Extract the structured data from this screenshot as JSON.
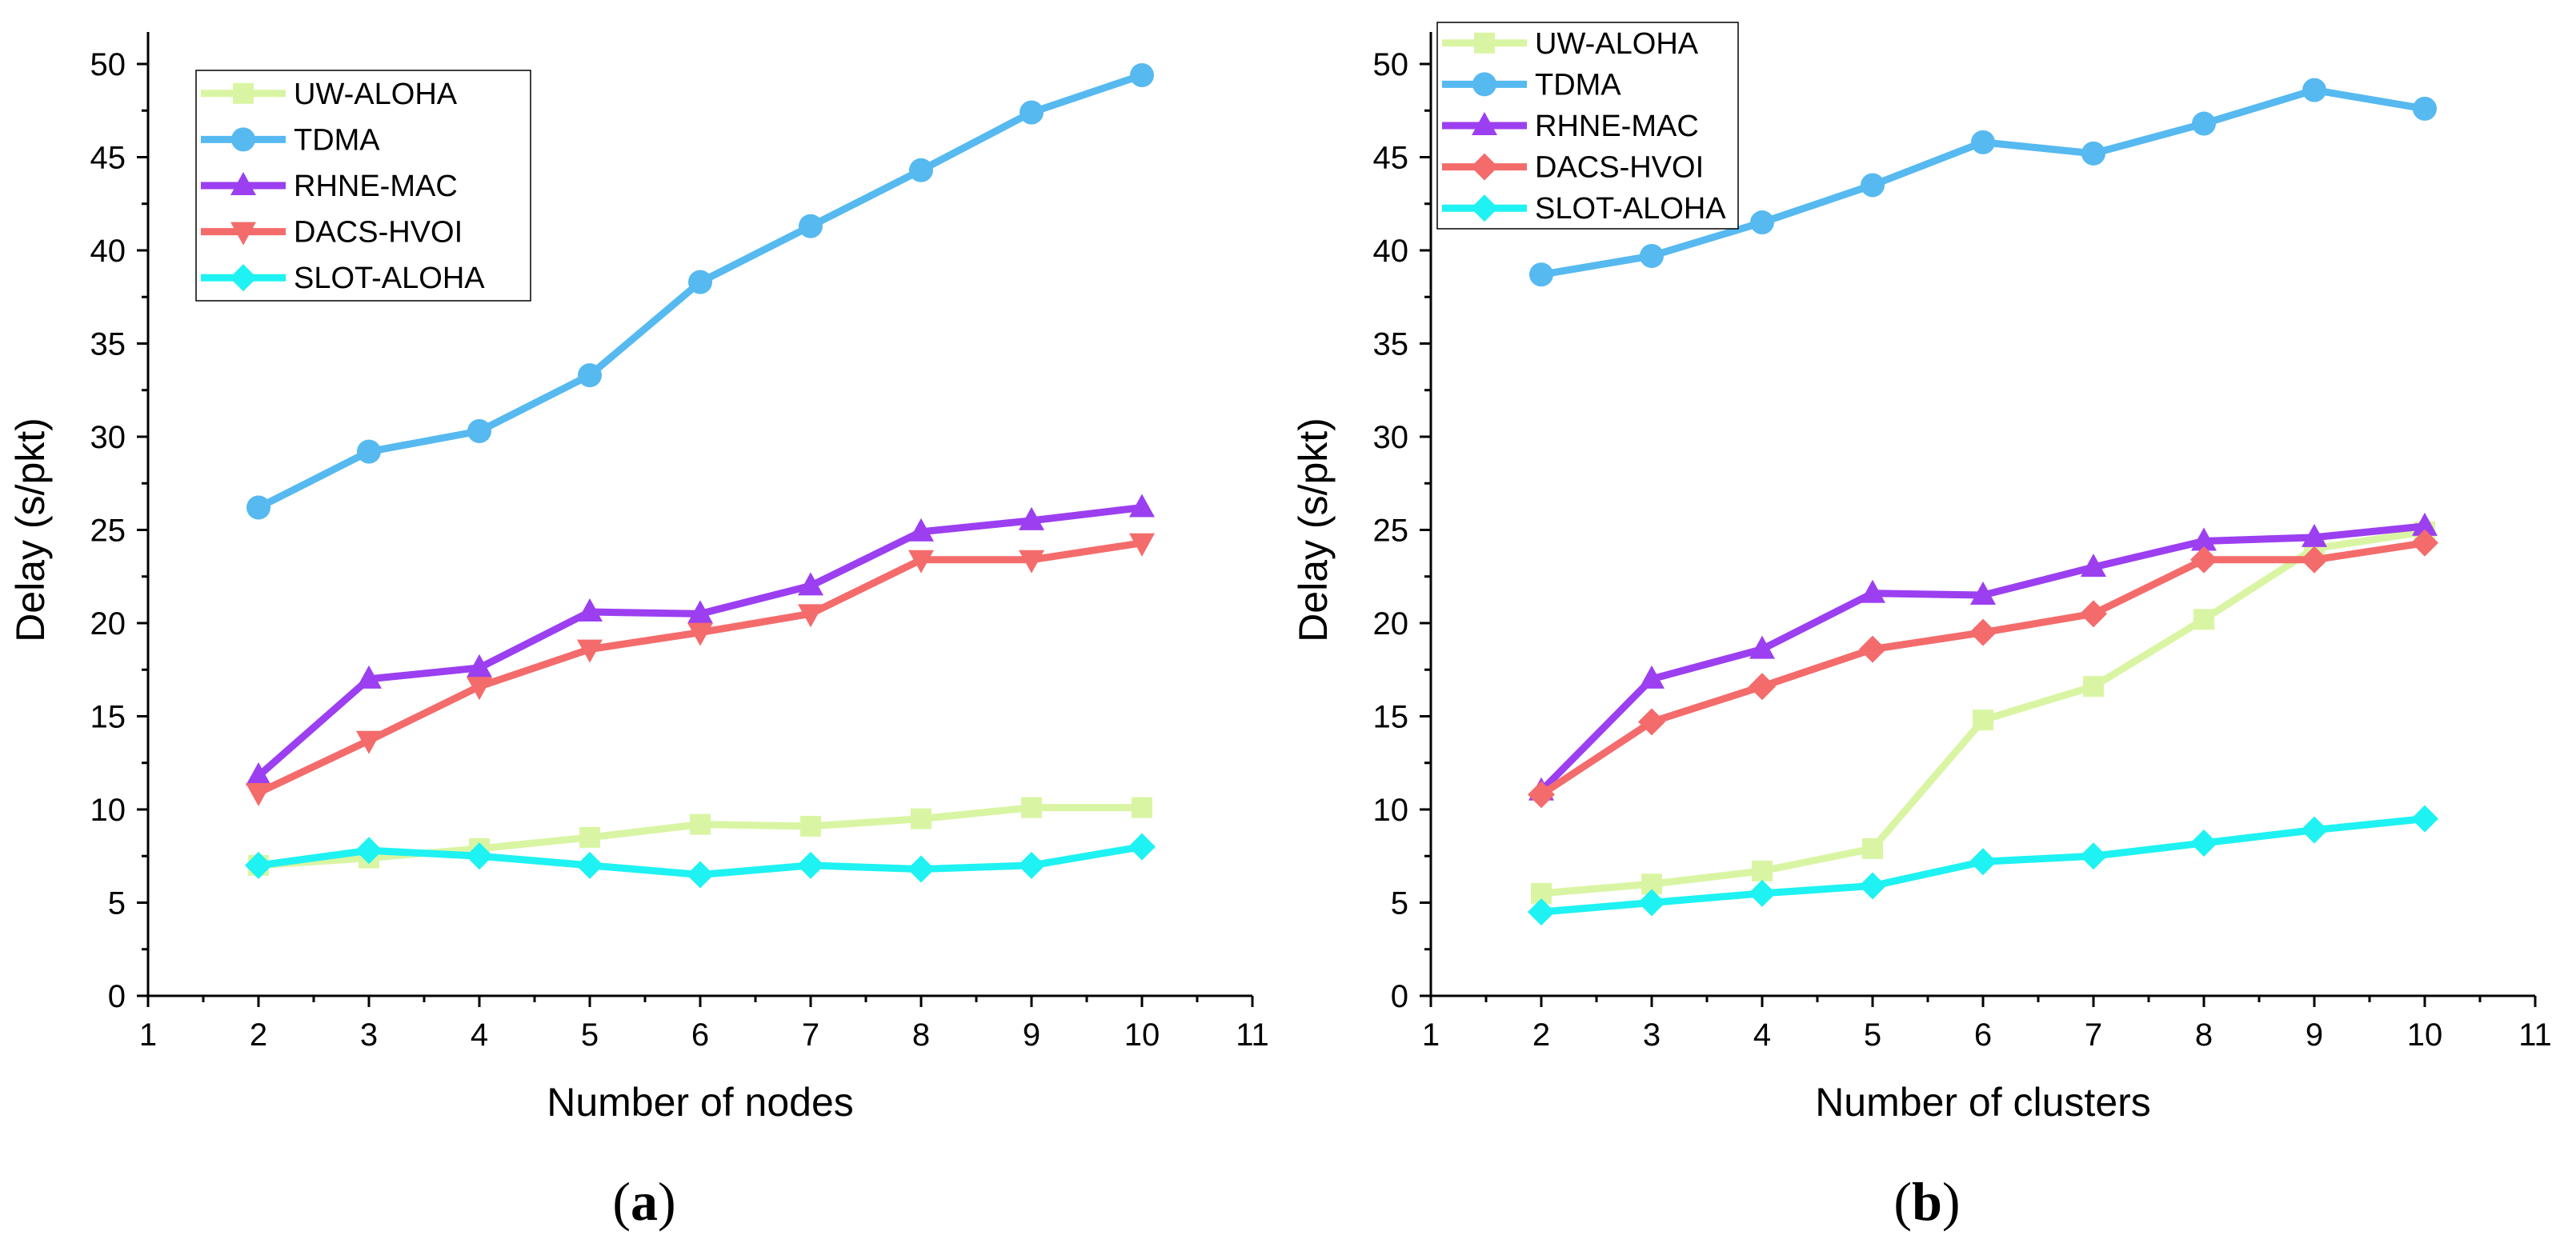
{
  "chart_data": [
    {
      "type": "line",
      "panel_label_letter": "a",
      "xlabel": "Number of nodes",
      "ylabel": "Delay (s/pkt)",
      "xlim": [
        1,
        11
      ],
      "ylim": [
        0,
        50
      ],
      "xticks": [
        1,
        2,
        3,
        4,
        5,
        6,
        7,
        8,
        9,
        10,
        11
      ],
      "yticks": [
        0,
        5,
        10,
        15,
        20,
        25,
        30,
        35,
        40,
        45,
        50
      ],
      "legend_position": "top-left",
      "x": [
        2,
        3,
        4,
        5,
        6,
        7,
        8,
        9,
        10
      ],
      "series": [
        {
          "name": "UW-ALOHA",
          "color": "#d9f5a3",
          "marker": "square",
          "values": [
            7.0,
            7.4,
            7.9,
            8.5,
            9.2,
            9.1,
            9.5,
            10.1,
            10.1
          ]
        },
        {
          "name": "TDMA",
          "color": "#56b9f0",
          "marker": "circle",
          "values": [
            26.2,
            29.2,
            30.3,
            33.3,
            38.3,
            41.3,
            44.3,
            47.4,
            49.4
          ]
        },
        {
          "name": "RHNE-MAC",
          "color": "#9b3ff0",
          "marker": "triangle-up",
          "values": [
            11.8,
            17.0,
            17.6,
            20.6,
            20.5,
            22.0,
            24.9,
            25.5,
            26.2
          ]
        },
        {
          "name": "DACS-HVOI",
          "color": "#f46b6b",
          "marker": "triangle-down",
          "values": [
            10.9,
            13.7,
            16.6,
            18.6,
            19.5,
            20.5,
            23.4,
            23.4,
            24.3
          ]
        },
        {
          "name": "SLOT-ALOHA",
          "color": "#1ef2f2",
          "marker": "diamond",
          "values": [
            7.0,
            7.8,
            7.5,
            7.0,
            6.5,
            7.0,
            6.8,
            7.0,
            8.0
          ]
        }
      ]
    },
    {
      "type": "line",
      "panel_label_letter": "b",
      "xlabel": "Number of clusters",
      "ylabel": "Delay (s/pkt)",
      "xlim": [
        1,
        11
      ],
      "ylim": [
        0,
        50
      ],
      "xticks": [
        1,
        2,
        3,
        4,
        5,
        6,
        7,
        8,
        9,
        10,
        11
      ],
      "yticks": [
        0,
        5,
        10,
        15,
        20,
        25,
        30,
        35,
        40,
        45,
        50
      ],
      "legend_position": "top-left",
      "x": [
        2,
        3,
        4,
        5,
        6,
        7,
        8,
        9,
        10
      ],
      "series": [
        {
          "name": "UW-ALOHA",
          "color": "#d9f5a3",
          "marker": "square",
          "values": [
            5.5,
            6.0,
            6.7,
            7.9,
            14.8,
            16.6,
            20.2,
            24.0,
            24.9
          ]
        },
        {
          "name": "TDMA",
          "color": "#56b9f0",
          "marker": "circle",
          "values": [
            38.7,
            39.7,
            41.5,
            43.5,
            45.8,
            45.2,
            46.8,
            48.6,
            47.6
          ]
        },
        {
          "name": "RHNE-MAC",
          "color": "#9b3ff0",
          "marker": "triangle-up",
          "values": [
            11.0,
            17.0,
            18.6,
            21.6,
            21.5,
            23.0,
            24.4,
            24.6,
            25.2
          ]
        },
        {
          "name": "DACS-HVOI",
          "color": "#f46b6b",
          "marker": "diamond",
          "values": [
            10.8,
            14.7,
            16.6,
            18.6,
            19.5,
            20.5,
            23.4,
            23.4,
            24.3
          ]
        },
        {
          "name": "SLOT-ALOHA",
          "color": "#1ef2f2",
          "marker": "diamond",
          "values": [
            4.5,
            5.0,
            5.5,
            5.9,
            7.2,
            7.5,
            8.2,
            8.9,
            9.5
          ]
        }
      ]
    }
  ]
}
